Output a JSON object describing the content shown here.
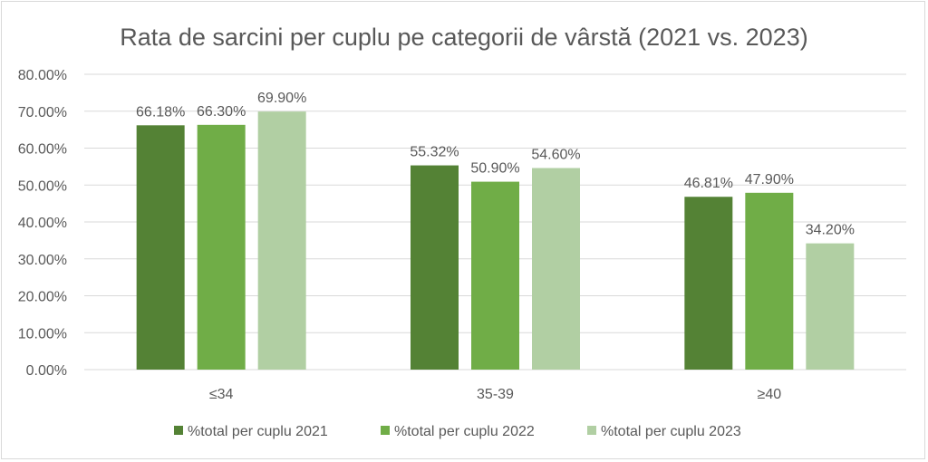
{
  "chart_data": {
    "type": "bar",
    "title": "Rata de sarcini per cuplu pe categorii de vârstă (2021 vs. 2023)",
    "categories": [
      "≤34",
      "35-39",
      "≥40"
    ],
    "series": [
      {
        "name": "%total per cuplu 2021",
        "values": [
          66.18,
          55.32,
          46.81
        ],
        "labels": [
          "66.18%",
          "55.32%",
          "46.81%"
        ],
        "color": "#548235"
      },
      {
        "name": "%total per cuplu 2022",
        "values": [
          66.3,
          50.9,
          47.9
        ],
        "labels": [
          "66.30%",
          "50.90%",
          "47.90%"
        ],
        "color": "#70AD47"
      },
      {
        "name": "%total per cuplu 2023",
        "values": [
          69.9,
          54.6,
          34.2
        ],
        "labels": [
          "69.90%",
          "54.60%",
          "34.20%"
        ],
        "color": "#B1CFA3"
      }
    ],
    "ylim": [
      0,
      80
    ],
    "yticks": [
      "0.00%",
      "10.00%",
      "20.00%",
      "30.00%",
      "40.00%",
      "50.00%",
      "60.00%",
      "70.00%",
      "80.00%"
    ],
    "grid": true,
    "legend": "bottom"
  }
}
